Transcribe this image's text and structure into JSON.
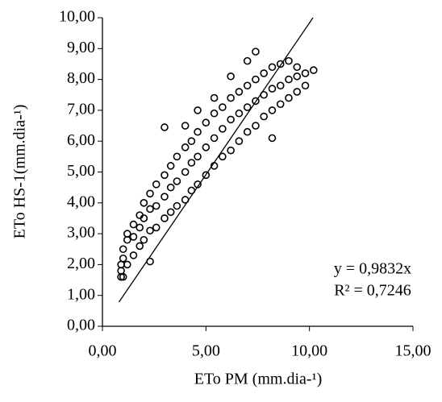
{
  "chart_data": {
    "type": "scatter",
    "x_label": "ETo PM (mm.dia-¹)",
    "y_label": "ETo HS-1(mm.dia-¹)",
    "color": "#000000",
    "xlim": [
      0,
      15
    ],
    "xticks": [
      {
        "value": 0,
        "label": "0,00"
      },
      {
        "value": 5,
        "label": "5,00"
      },
      {
        "value": 10,
        "label": "10,00"
      },
      {
        "value": 15,
        "label": "15,00"
      }
    ],
    "ylim": [
      0,
      10
    ],
    "yticks": [
      {
        "value": 0,
        "label": "0,00"
      },
      {
        "value": 1,
        "label": "1,00"
      },
      {
        "value": 2,
        "label": "2,00"
      },
      {
        "value": 3,
        "label": "3,00"
      },
      {
        "value": 4,
        "label": "4,00"
      },
      {
        "value": 5,
        "label": "5,00"
      },
      {
        "value": 6,
        "label": "6,00"
      },
      {
        "value": 7,
        "label": "7,00"
      },
      {
        "value": 8,
        "label": "8,00"
      },
      {
        "value": 9,
        "label": "9,00"
      },
      {
        "value": 10,
        "label": "10,00"
      }
    ],
    "x": [
      0.9,
      0.9,
      0.9,
      1.0,
      1.0,
      1.0,
      1.2,
      1.2,
      1.2,
      1.5,
      1.5,
      1.5,
      1.8,
      1.8,
      1.8,
      2.0,
      2.0,
      2.0,
      2.3,
      2.3,
      2.3,
      2.3,
      2.6,
      2.6,
      2.6,
      3.0,
      3.0,
      3.0,
      3.0,
      3.3,
      3.3,
      3.3,
      3.6,
      3.6,
      3.6,
      4.0,
      4.0,
      4.0,
      4.0,
      4.3,
      4.3,
      4.3,
      4.6,
      4.6,
      4.6,
      4.6,
      5.0,
      5.0,
      5.0,
      5.4,
      5.4,
      5.4,
      5.4,
      5.8,
      5.8,
      5.8,
      6.2,
      6.2,
      6.2,
      6.2,
      6.6,
      6.6,
      6.6,
      7.0,
      7.0,
      7.0,
      7.0,
      7.4,
      7.4,
      7.4,
      7.4,
      7.8,
      7.8,
      7.8,
      8.2,
      8.2,
      8.2,
      8.2,
      8.6,
      8.6,
      8.6,
      9.0,
      9.0,
      9.0,
      9.4,
      9.4,
      9.4,
      9.8,
      9.8,
      10.2
    ],
    "values": [
      1.6,
      1.8,
      2.0,
      1.6,
      2.2,
      2.5,
      2.0,
      2.8,
      3.0,
      2.3,
      2.9,
      3.3,
      2.6,
      3.2,
      3.6,
      2.8,
      3.5,
      4.0,
      2.1,
      3.1,
      3.8,
      4.3,
      3.2,
      3.9,
      4.6,
      3.5,
      4.2,
      4.9,
      6.45,
      3.7,
      4.5,
      5.2,
      3.9,
      4.7,
      5.5,
      4.1,
      5.0,
      5.8,
      6.5,
      4.4,
      5.3,
      6.0,
      4.6,
      5.5,
      6.3,
      7.0,
      4.9,
      5.8,
      6.6,
      5.2,
      6.1,
      6.9,
      7.4,
      5.5,
      6.4,
      7.1,
      5.7,
      6.7,
      7.4,
      8.1,
      6.0,
      6.9,
      7.6,
      6.3,
      7.1,
      7.8,
      8.6,
      6.5,
      7.3,
      8.0,
      8.9,
      6.8,
      7.5,
      8.2,
      6.1,
      7.0,
      7.7,
      8.4,
      7.2,
      7.8,
      8.5,
      7.4,
      8.0,
      8.6,
      7.6,
      8.1,
      8.4,
      7.8,
      8.2,
      8.3
    ],
    "trendline": {
      "slope": 0.9832,
      "x": [
        0.8,
        10.17
      ],
      "equation": "y = 0,9832x",
      "r2": "R² = 0,7246"
    }
  }
}
